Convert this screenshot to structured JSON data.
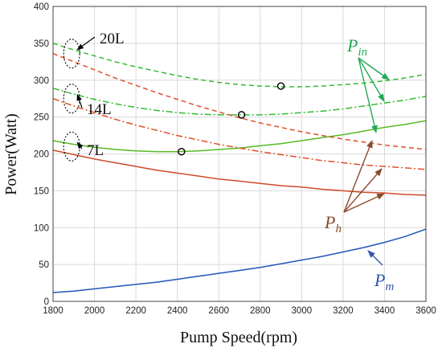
{
  "chart_data": {
    "type": "line",
    "xlabel": "Pump Speed(rpm)",
    "ylabel": "Power(Watt)",
    "xlim": [
      1800,
      3600
    ],
    "ylim": [
      0,
      400
    ],
    "xticks": [
      1800,
      2000,
      2200,
      2400,
      2600,
      2800,
      3000,
      3200,
      3400,
      3600
    ],
    "yticks": [
      0,
      50,
      100,
      150,
      200,
      250,
      300,
      350,
      400
    ],
    "grid": true,
    "x": [
      1800,
      1900,
      2000,
      2100,
      2200,
      2300,
      2400,
      2500,
      2600,
      2700,
      2800,
      2900,
      3000,
      3100,
      3200,
      3300,
      3400,
      3500,
      3600
    ],
    "series": [
      {
        "label_ref": "P_in",
        "volume": "20L",
        "style": "dashed",
        "color": "#33bb33",
        "values": [
          350,
          341,
          333,
          325,
          318,
          312,
          306,
          301,
          297,
          294,
          292,
          291,
          291,
          292,
          294,
          296,
          299,
          303,
          308
        ]
      },
      {
        "label_ref": "P_in",
        "volume": "14L",
        "style": "dashdot",
        "color": "#33bb33",
        "values": [
          289,
          281,
          274,
          268,
          263,
          259,
          256,
          254,
          253,
          253,
          253,
          254,
          256,
          258,
          261,
          265,
          269,
          273,
          278
        ]
      },
      {
        "label_ref": "P_in",
        "volume": "7L",
        "style": "solid",
        "color": "#55bb22",
        "values": [
          218,
          213,
          209,
          206,
          204,
          203,
          203,
          204,
          206,
          208,
          211,
          214,
          218,
          222,
          226,
          231,
          236,
          240,
          245
        ]
      },
      {
        "label_ref": "P_h",
        "volume": "20L",
        "style": "dashed",
        "color": "#e0502a",
        "values": [
          336,
          325,
          314,
          303,
          293,
          283,
          274,
          265,
          257,
          249,
          242,
          236,
          230,
          225,
          220,
          216,
          212,
          209,
          206
        ]
      },
      {
        "label_ref": "P_h",
        "volume": "14L",
        "style": "dashdot",
        "color": "#e0502a",
        "values": [
          275,
          265,
          256,
          247,
          239,
          232,
          225,
          219,
          213,
          208,
          203,
          199,
          195,
          191,
          188,
          185,
          183,
          181,
          179
        ]
      },
      {
        "label_ref": "P_h",
        "volume": "7L",
        "style": "solid",
        "color": "#d04a28",
        "values": [
          205,
          199,
          193,
          188,
          183,
          178,
          174,
          170,
          166,
          163,
          160,
          157,
          155,
          152,
          150,
          148,
          147,
          145,
          144
        ]
      },
      {
        "label_ref": "P_m",
        "volume": "",
        "style": "solid",
        "color": "#2255bb",
        "values": [
          12,
          14,
          17,
          20,
          23,
          26,
          30,
          34,
          38,
          42,
          46,
          51,
          56,
          61,
          67,
          73,
          80,
          88,
          98
        ]
      }
    ],
    "markers": [
      {
        "x": 2900,
        "y": 292
      },
      {
        "x": 2710,
        "y": 253
      },
      {
        "x": 2420,
        "y": 203
      }
    ],
    "annotations": {
      "volume_labels": [
        {
          "text": "20L",
          "ellipse_y": 336
        },
        {
          "text": "14L",
          "ellipse_y": 275
        },
        {
          "text": "7L",
          "ellipse_y": 210
        }
      ],
      "p_in": {
        "main": "P",
        "sub": "in",
        "color": "#22aa55"
      },
      "p_h": {
        "main": "P",
        "sub": "h",
        "color": "#8b4a2a"
      },
      "p_m": {
        "main": "P",
        "sub": "m",
        "color": "#3355aa"
      }
    }
  }
}
